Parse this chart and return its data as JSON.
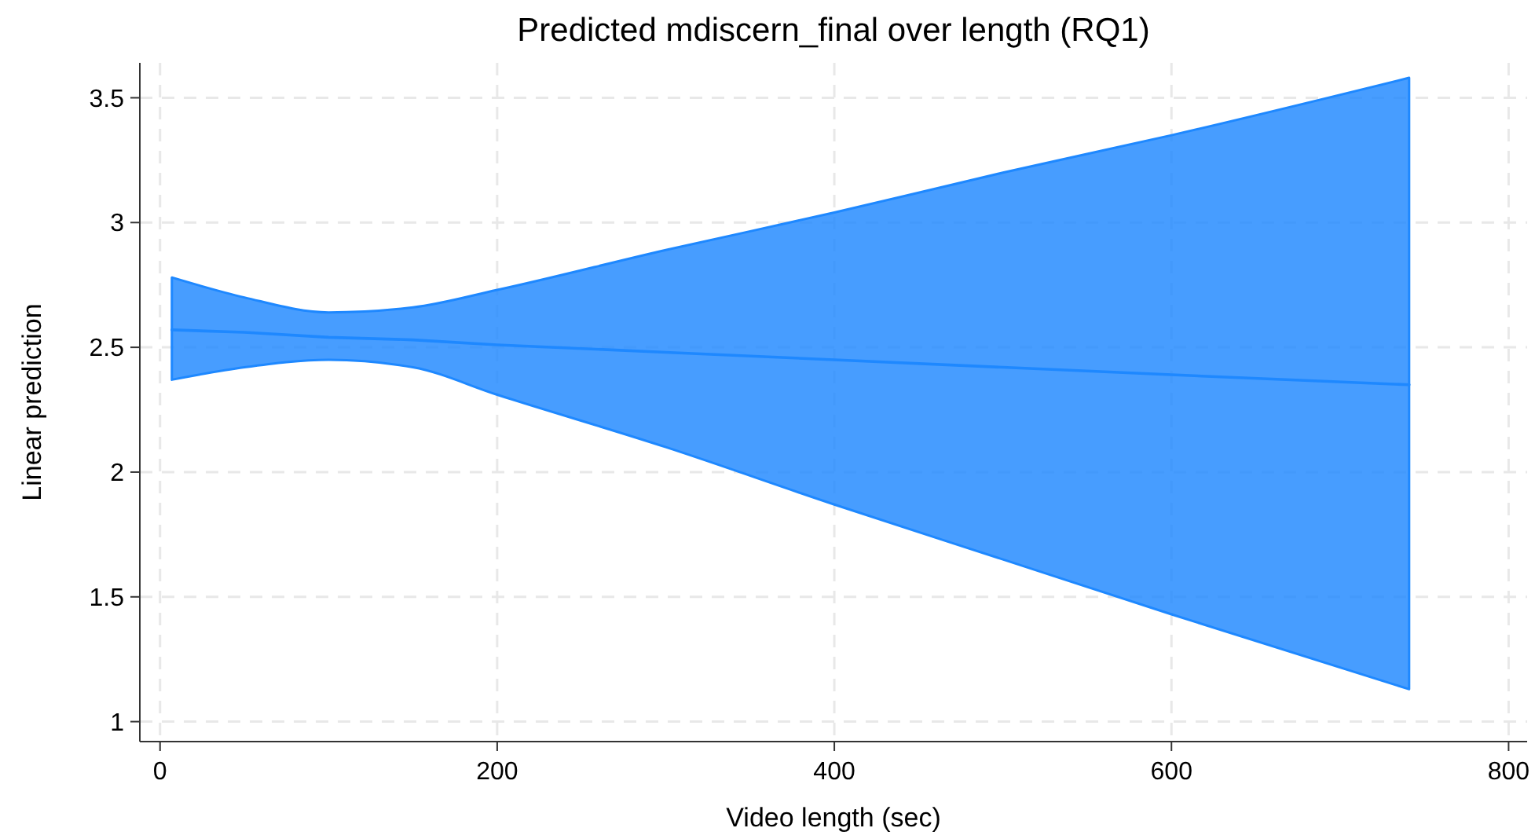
{
  "chart_data": {
    "type": "line",
    "title": "Predicted mdiscern_final over length (RQ1)",
    "xlabel": "Video length (sec)",
    "ylabel": "Linear prediction",
    "series": [
      {
        "color": "#1e88ff",
        "x": [
          7,
          50,
          100,
          150,
          200,
          300,
          400,
          500,
          600,
          741
        ],
        "values": [
          2.57,
          2.56,
          2.54,
          2.53,
          2.51,
          2.48,
          2.45,
          2.42,
          2.39,
          2.35
        ],
        "lower": [
          2.37,
          2.42,
          2.45,
          2.42,
          2.31,
          2.1,
          1.87,
          1.65,
          1.43,
          1.13
        ],
        "upper": [
          2.78,
          2.7,
          2.64,
          2.66,
          2.73,
          2.89,
          3.04,
          3.2,
          3.35,
          3.58
        ]
      }
    ],
    "xlim": [
      -12,
      811
    ],
    "xticks": [
      0,
      200,
      400,
      600,
      800
    ],
    "ylim": [
      0.92,
      3.64
    ],
    "yticks": [
      1,
      1.5,
      2,
      2.5,
      3,
      3.5
    ],
    "grid": true,
    "marker": "none",
    "line_style": "solid"
  }
}
